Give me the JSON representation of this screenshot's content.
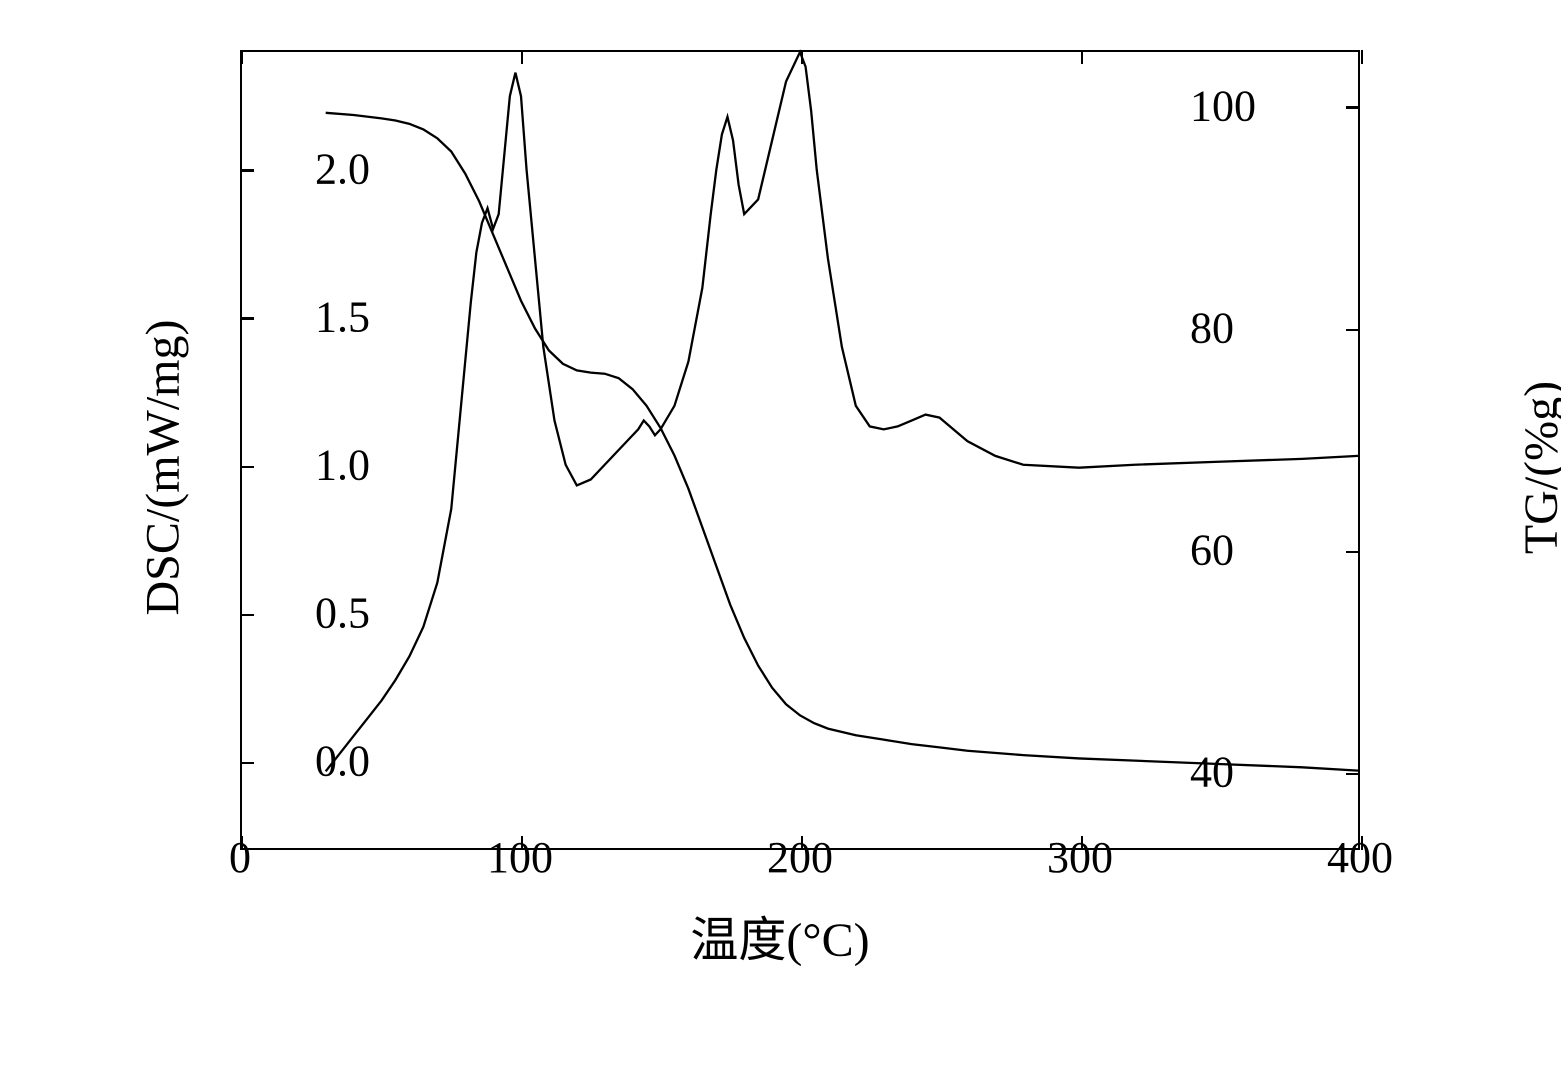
{
  "chart": {
    "type": "line-dual-axis",
    "background_color": "#ffffff",
    "line_color": "#000000",
    "line_width": 2.3,
    "border_color": "#000000",
    "border_width": 2.5,
    "tick_length": 14,
    "xlabel": "温度(°C)",
    "ylabel_left": "DSC/(mW/mg)",
    "ylabel_right": "TG/(%g)",
    "label_fontsize": 48,
    "tick_fontsize": 44,
    "xlim": [
      0,
      400
    ],
    "ylim_left": [
      -0.3,
      2.4
    ],
    "ylim_right": [
      33,
      105
    ],
    "xticks": [
      0,
      100,
      200,
      300,
      400
    ],
    "yticks_left": [
      0.0,
      0.5,
      1.0,
      1.5,
      2.0
    ],
    "yticks_left_labels": [
      "0.0",
      "0.5",
      "1.0",
      "1.5",
      "2.0"
    ],
    "yticks_right": [
      40,
      60,
      80,
      100
    ],
    "dsc_series": {
      "x": [
        30,
        35,
        40,
        45,
        50,
        55,
        60,
        65,
        70,
        75,
        80,
        82,
        84,
        86,
        88,
        90,
        92,
        94,
        96,
        98,
        100,
        102,
        105,
        108,
        112,
        116,
        120,
        125,
        130,
        135,
        140,
        142,
        144,
        146,
        148,
        150,
        155,
        160,
        165,
        168,
        170,
        172,
        174,
        176,
        178,
        180,
        185,
        190,
        195,
        200,
        202,
        204,
        206,
        210,
        215,
        220,
        225,
        230,
        235,
        240,
        245,
        250,
        255,
        260,
        270,
        280,
        300,
        320,
        350,
        380,
        400
      ],
      "y": [
        -0.04,
        0.02,
        0.08,
        0.14,
        0.2,
        0.27,
        0.35,
        0.45,
        0.6,
        0.85,
        1.35,
        1.55,
        1.72,
        1.82,
        1.87,
        1.8,
        1.85,
        2.05,
        2.25,
        2.33,
        2.25,
        2.0,
        1.7,
        1.4,
        1.15,
        1.0,
        0.93,
        0.95,
        1.0,
        1.05,
        1.1,
        1.12,
        1.15,
        1.13,
        1.1,
        1.12,
        1.2,
        1.35,
        1.6,
        1.85,
        2.0,
        2.12,
        2.18,
        2.1,
        1.95,
        1.85,
        1.9,
        2.1,
        2.3,
        2.4,
        2.35,
        2.2,
        2.0,
        1.7,
        1.4,
        1.2,
        1.13,
        1.12,
        1.13,
        1.15,
        1.17,
        1.16,
        1.12,
        1.08,
        1.03,
        1.0,
        0.99,
        1.0,
        1.01,
        1.02,
        1.03
      ]
    },
    "tg_series": {
      "x": [
        30,
        40,
        50,
        55,
        60,
        65,
        70,
        75,
        80,
        85,
        90,
        95,
        100,
        105,
        110,
        115,
        120,
        125,
        130,
        135,
        140,
        145,
        150,
        155,
        160,
        165,
        170,
        175,
        180,
        185,
        190,
        195,
        200,
        205,
        210,
        220,
        230,
        240,
        250,
        260,
        280,
        300,
        320,
        350,
        380,
        400
      ],
      "y": [
        99.5,
        99.3,
        99.0,
        98.8,
        98.5,
        98.0,
        97.2,
        96.0,
        94.0,
        91.5,
        88.5,
        85.5,
        82.5,
        80.0,
        78.0,
        76.8,
        76.2,
        76.0,
        75.9,
        75.5,
        74.5,
        73.0,
        71.0,
        68.5,
        65.5,
        62.0,
        58.5,
        55.0,
        52.0,
        49.5,
        47.5,
        46.0,
        45.0,
        44.3,
        43.8,
        43.2,
        42.8,
        42.4,
        42.1,
        41.8,
        41.4,
        41.1,
        40.9,
        40.6,
        40.3,
        40.0
      ]
    }
  }
}
